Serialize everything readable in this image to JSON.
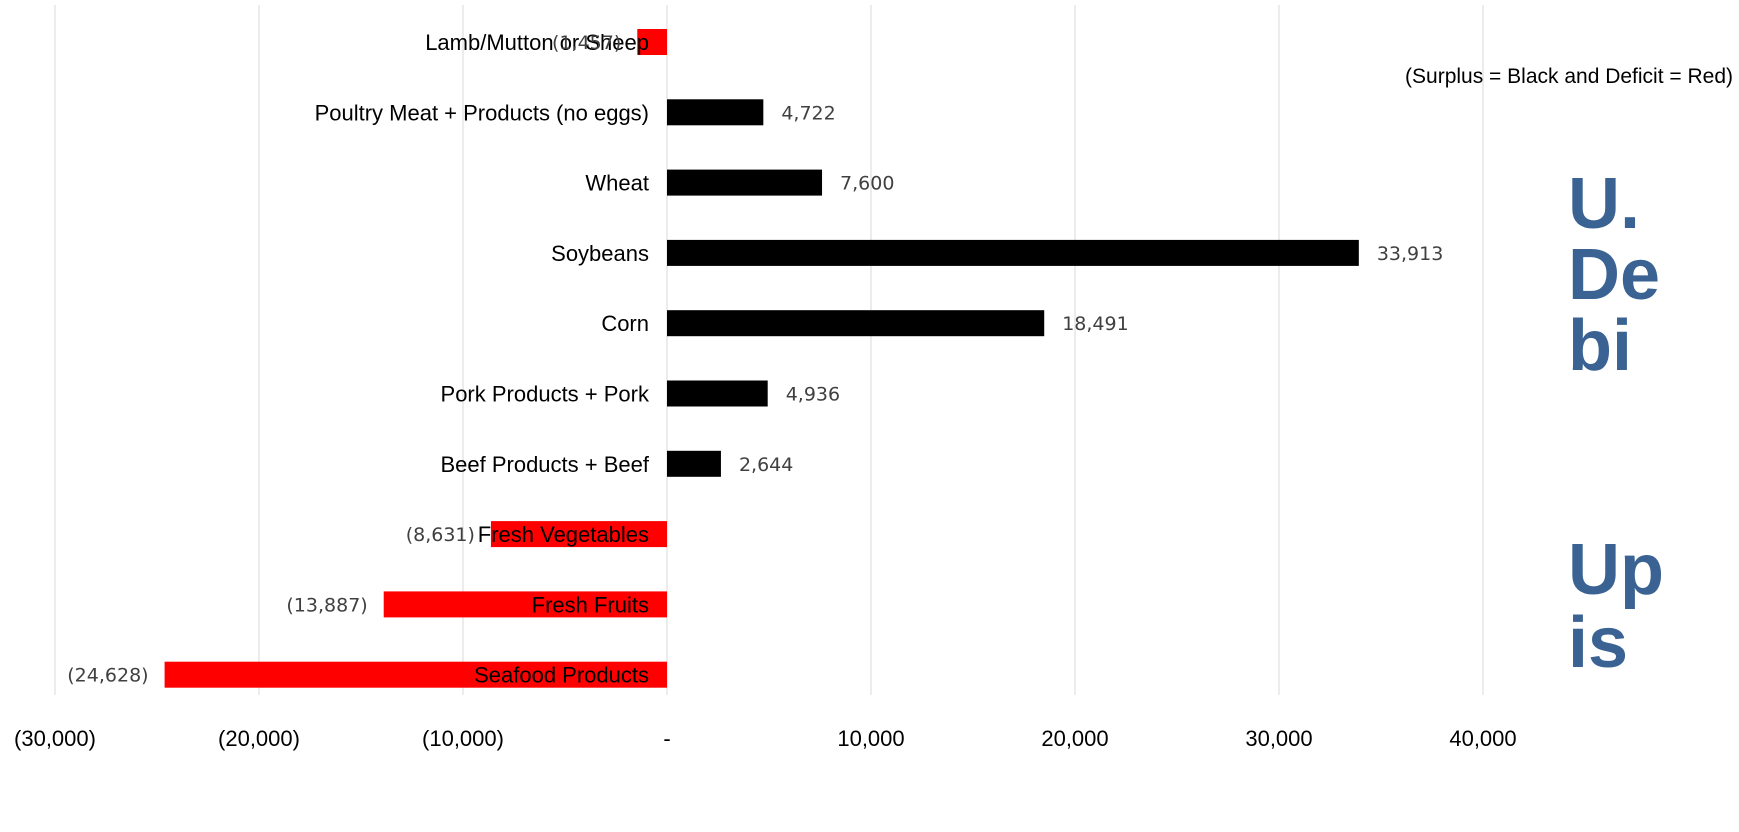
{
  "chart_data": {
    "type": "bar",
    "orientation": "horizontal",
    "title": "",
    "xlabel": "",
    "ylabel": "",
    "xlim": [
      -30000,
      40000
    ],
    "x_ticks": [
      -30000,
      -20000,
      -10000,
      0,
      10000,
      20000,
      30000,
      40000
    ],
    "x_tick_labels": [
      "(30,000)",
      "(20,000)",
      "(10,000)",
      "-",
      "10,000",
      "20,000",
      "30,000",
      "40,000"
    ],
    "grid": "vertical",
    "legend": "none",
    "categories": [
      "Lamb/Mutton or Sheep",
      "Poultry Meat + Products (no eggs)",
      "Wheat",
      "Soybeans",
      "Corn",
      "Pork Products + Pork",
      "Beef Products + Beef",
      "Fresh Vegetables",
      "Fresh Fruits",
      "Seafood Products"
    ],
    "values": [
      -1457,
      4722,
      7600,
      33913,
      18491,
      4936,
      2644,
      -8631,
      -13887,
      -24628
    ],
    "value_labels": [
      "(1,457)",
      "4,722",
      "7,600",
      "33,913",
      "18,491",
      "4,936",
      "2,644",
      "(8,631)",
      "(13,887)",
      "(24,628)"
    ],
    "annotation": "(Surplus = Black and Deficit = Red)",
    "cropped_text": [
      "U.",
      "De",
      "bi",
      "Up",
      "is"
    ],
    "colors": {
      "surplus": "#000000",
      "deficit": "#ff0000",
      "grid": "#d9d9d9",
      "cropped_text": "#3a6292"
    }
  }
}
